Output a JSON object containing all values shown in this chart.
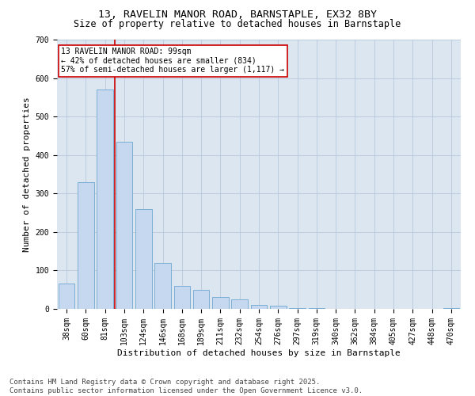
{
  "title_line1": "13, RAVELIN MANOR ROAD, BARNSTAPLE, EX32 8BY",
  "title_line2": "Size of property relative to detached houses in Barnstaple",
  "xlabel": "Distribution of detached houses by size in Barnstaple",
  "ylabel": "Number of detached properties",
  "categories": [
    "38sqm",
    "60sqm",
    "81sqm",
    "103sqm",
    "124sqm",
    "146sqm",
    "168sqm",
    "189sqm",
    "211sqm",
    "232sqm",
    "254sqm",
    "276sqm",
    "297sqm",
    "319sqm",
    "340sqm",
    "362sqm",
    "384sqm",
    "405sqm",
    "427sqm",
    "448sqm",
    "470sqm"
  ],
  "values": [
    65,
    330,
    570,
    435,
    260,
    120,
    60,
    50,
    30,
    25,
    10,
    8,
    3,
    2,
    0,
    0,
    0,
    0,
    0,
    0,
    2
  ],
  "bar_color": "#c5d8f0",
  "bar_edge_color": "#7bafd4",
  "bar_linewidth": 0.7,
  "grid_color": "#b8c8dc",
  "bg_color": "#dce6f1",
  "annotation_text": "13 RAVELIN MANOR ROAD: 99sqm\n← 42% of detached houses are smaller (834)\n57% of semi-detached houses are larger (1,117) →",
  "annotation_box_color": "#ffffff",
  "annotation_box_edge": "#cc0000",
  "redline_color": "#cc0000",
  "ylim": [
    0,
    700
  ],
  "yticks": [
    0,
    100,
    200,
    300,
    400,
    500,
    600,
    700
  ],
  "footnote": "Contains HM Land Registry data © Crown copyright and database right 2025.\nContains public sector information licensed under the Open Government Licence v3.0.",
  "title_fontsize": 9.5,
  "subtitle_fontsize": 8.5,
  "axis_label_fontsize": 8,
  "tick_fontsize": 7,
  "annotation_fontsize": 7,
  "footnote_fontsize": 6.5
}
